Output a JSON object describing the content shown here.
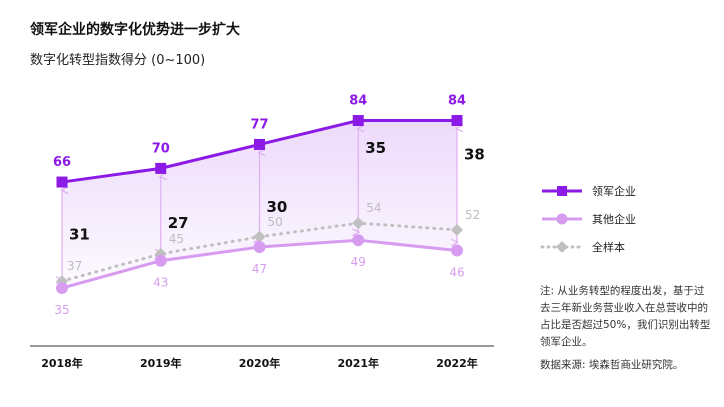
{
  "title": "领军企业的数字化优势进一步扩大",
  "subtitle": "数字化转型指数得分 (0~100)",
  "note": "注: 从业务转型的程度出发，基于过去三年新业务营业收入在总营收中的占比是否超过50%，我们识别出转型领军企业。",
  "source": "数据来源: 埃森哲商业研究院。",
  "colors": {
    "leader": "#8c1ae6",
    "other": "#d79cf0",
    "all": "#c0c0c0",
    "gap_line": "#e0aef2",
    "gap_text": "#111111"
  },
  "chart_data": {
    "type": "line",
    "categories": [
      "2018年",
      "2019年",
      "2020年",
      "2021年",
      "2022年"
    ],
    "series": [
      {
        "name": "领军企业",
        "values": [
          66,
          70,
          77,
          84,
          84
        ],
        "marker": "square",
        "style": "solid"
      },
      {
        "name": "其他企业",
        "values": [
          35,
          43,
          47,
          49,
          46
        ],
        "marker": "circle",
        "style": "solid"
      },
      {
        "name": "全样本",
        "values": [
          37,
          45,
          50,
          54,
          52
        ],
        "marker": "diamond",
        "style": "dotted"
      }
    ],
    "gaps": [
      31,
      27,
      30,
      35,
      38
    ],
    "ylim": [
      28,
      90
    ],
    "legend": "right",
    "grid": false
  }
}
